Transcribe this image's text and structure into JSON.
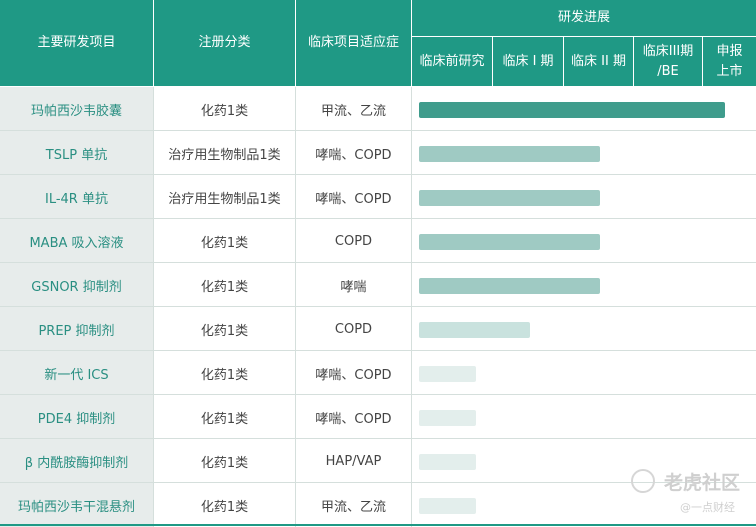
{
  "header": {
    "col_item": "主要研发项目",
    "col_category": "注册分类",
    "col_indication": "临床项目适应症",
    "progress_title": "研发进展",
    "stages": [
      {
        "line1": "临床前研究",
        "line2": ""
      },
      {
        "line1": "临床 I 期",
        "line2": ""
      },
      {
        "line1": "临床 II 期",
        "line2": ""
      },
      {
        "line1": "临床III期",
        "line2": "/BE"
      },
      {
        "line1": "申报",
        "line2": "上市"
      }
    ]
  },
  "rows": [
    {
      "name": "玛帕西沙韦胶囊",
      "category": "化药1类",
      "indication": "甲流、乙流",
      "progress": 0.974,
      "shade": "dark"
    },
    {
      "name": "TSLP 单抗",
      "category": "治疗用生物制品1类",
      "indication": "哮喘、COPD",
      "progress": 0.578,
      "shade": "medium"
    },
    {
      "name": "IL-4R 单抗",
      "category": "治疗用生物制品1类",
      "indication": "哮喘、COPD",
      "progress": 0.578,
      "shade": "medium"
    },
    {
      "name": "MABA 吸入溶液",
      "category": "化药1类",
      "indication": "COPD",
      "progress": 0.578,
      "shade": "medium"
    },
    {
      "name": "GSNOR 抑制剂",
      "category": "化药1类",
      "indication": "哮喘",
      "progress": 0.578,
      "shade": "medium"
    },
    {
      "name": "PREP 抑制剂",
      "category": "化药1类",
      "indication": "COPD",
      "progress": 0.355,
      "shade": "light"
    },
    {
      "name": "新一代 ICS",
      "category": "化药1类",
      "indication": "哮喘、COPD",
      "progress": 0.18,
      "shade": "pale"
    },
    {
      "name": "PDE4 抑制剂",
      "category": "化药1类",
      "indication": "哮喘、COPD",
      "progress": 0.18,
      "shade": "pale"
    },
    {
      "name": "β 内酰胺酶抑制剂",
      "category": "化药1类",
      "indication": "HAP/VAP",
      "progress": 0.18,
      "shade": "pale"
    },
    {
      "name": "玛帕西沙韦干混悬剂",
      "category": "化药1类",
      "indication": "甲流、乙流",
      "progress": 0.18,
      "shade": "pale"
    }
  ],
  "colors": {
    "header": "#1f9985",
    "name_bg": "#e7eceb",
    "name_text": "#2a8f82",
    "bar_dark": "#3f9c8c",
    "bar_medium": "#9fcac3",
    "bar_light": "#c9e2de",
    "bar_pale": "#e3eeec"
  },
  "watermark": {
    "brand": "老虎社区",
    "source": "@一点财经"
  }
}
